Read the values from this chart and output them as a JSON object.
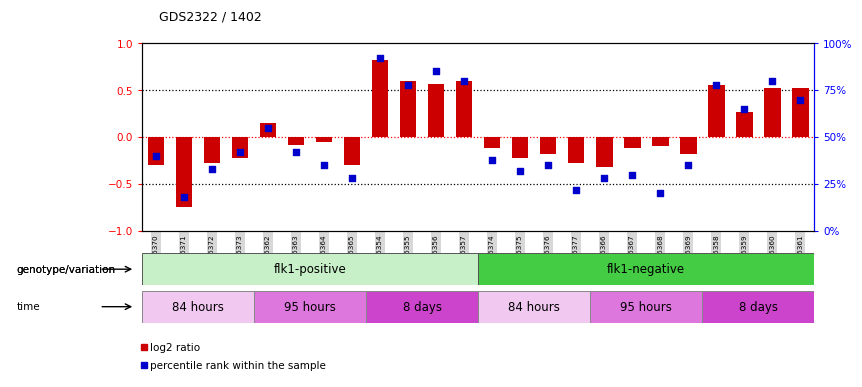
{
  "title": "GDS2322 / 1402",
  "samples": [
    "GSM86370",
    "GSM86371",
    "GSM86372",
    "GSM86373",
    "GSM86362",
    "GSM86363",
    "GSM86364",
    "GSM86365",
    "GSM86354",
    "GSM86355",
    "GSM86356",
    "GSM86357",
    "GSM86374",
    "GSM86375",
    "GSM86376",
    "GSM86377",
    "GSM86366",
    "GSM86367",
    "GSM86368",
    "GSM86369",
    "GSM86358",
    "GSM86359",
    "GSM86360",
    "GSM86361"
  ],
  "log2_ratio": [
    -0.3,
    -0.75,
    -0.28,
    -0.22,
    0.15,
    -0.08,
    -0.05,
    -0.3,
    0.82,
    0.6,
    0.57,
    0.6,
    -0.12,
    -0.22,
    -0.18,
    -0.28,
    -0.32,
    -0.12,
    -0.1,
    -0.18,
    0.55,
    0.27,
    0.52,
    0.52
  ],
  "percentile": [
    40,
    18,
    33,
    42,
    55,
    42,
    35,
    28,
    92,
    78,
    85,
    80,
    38,
    32,
    35,
    22,
    28,
    30,
    20,
    35,
    78,
    65,
    80,
    70
  ],
  "bar_color": "#cc0000",
  "dot_color": "#0000cc",
  "ylim": [
    -1.0,
    1.0
  ],
  "yticks": [
    -1.0,
    -0.5,
    0.0,
    0.5,
    1.0
  ],
  "y2lim": [
    0,
    100
  ],
  "y2ticks": [
    0,
    25,
    50,
    75,
    100
  ],
  "y2ticklabels": [
    "0%",
    "25%",
    "50%",
    "75%",
    "100%"
  ],
  "dotted_hlines": [
    -0.5,
    0.0,
    0.5
  ],
  "dotted_hline_colors": [
    "black",
    "red",
    "black"
  ],
  "genotype_groups": [
    {
      "label": "flk1-positive",
      "start": 0,
      "end": 11,
      "color": "#c8f0c8"
    },
    {
      "label": "flk1-negative",
      "start": 12,
      "end": 23,
      "color": "#44cc44"
    }
  ],
  "time_groups": [
    {
      "label": "84 hours",
      "start": 0,
      "end": 3,
      "color": "#f0c8f0"
    },
    {
      "label": "95 hours",
      "start": 4,
      "end": 7,
      "color": "#dd77dd"
    },
    {
      "label": "8 days",
      "start": 8,
      "end": 11,
      "color": "#cc44cc"
    },
    {
      "label": "84 hours",
      "start": 12,
      "end": 15,
      "color": "#f0c8f0"
    },
    {
      "label": "95 hours",
      "start": 16,
      "end": 19,
      "color": "#dd77dd"
    },
    {
      "label": "8 days",
      "start": 20,
      "end": 23,
      "color": "#cc44cc"
    }
  ],
  "legend_items": [
    {
      "label": "log2 ratio",
      "color": "#cc0000"
    },
    {
      "label": "percentile rank within the sample",
      "color": "#0000cc"
    }
  ],
  "xlabel_genotype": "genotype/variation",
  "xlabel_time": "time",
  "bar_width": 0.6,
  "tick_bg_color": "#d8d8d8",
  "spine_color": "#000000",
  "fig_bg": "#ffffff"
}
